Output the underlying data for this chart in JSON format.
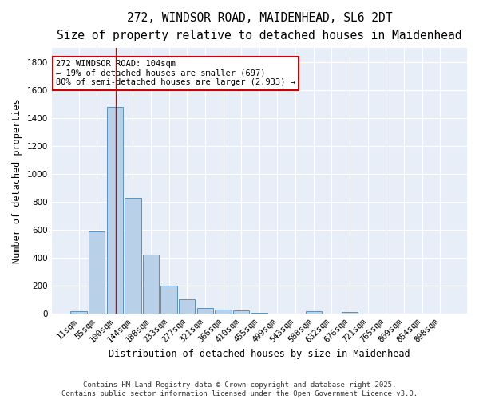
{
  "title_line1": "272, WINDSOR ROAD, MAIDENHEAD, SL6 2DT",
  "title_line2": "Size of property relative to detached houses in Maidenhead",
  "xlabel": "Distribution of detached houses by size in Maidenhead",
  "ylabel": "Number of detached properties",
  "bar_labels": [
    "11sqm",
    "55sqm",
    "100sqm",
    "144sqm",
    "188sqm",
    "233sqm",
    "277sqm",
    "321sqm",
    "366sqm",
    "410sqm",
    "455sqm",
    "499sqm",
    "543sqm",
    "588sqm",
    "632sqm",
    "676sqm",
    "721sqm",
    "765sqm",
    "809sqm",
    "854sqm",
    "898sqm"
  ],
  "bar_values": [
    15,
    590,
    1480,
    830,
    420,
    200,
    100,
    38,
    30,
    20,
    5,
    0,
    0,
    15,
    0,
    12,
    0,
    0,
    0,
    0,
    0
  ],
  "bar_color": "#b8d0e8",
  "bar_edge_color": "#6090b8",
  "background_color": "#e8eef8",
  "grid_color": "#ffffff",
  "red_line_x": 2.05,
  "annotation_text": "272 WINDSOR ROAD: 104sqm\n← 19% of detached houses are smaller (697)\n80% of semi-detached houses are larger (2,933) →",
  "annotation_box_color": "#ffffff",
  "annotation_box_edge": "#cc0000",
  "ylim": [
    0,
    1900
  ],
  "yticks": [
    0,
    200,
    400,
    600,
    800,
    1000,
    1200,
    1400,
    1600,
    1800
  ],
  "footnote": "Contains HM Land Registry data © Crown copyright and database right 2025.\nContains public sector information licensed under the Open Government Licence v3.0.",
  "title_fontsize": 10.5,
  "subtitle_fontsize": 9.5,
  "axis_label_fontsize": 8.5,
  "tick_fontsize": 7.5,
  "annotation_fontsize": 7.5,
  "footnote_fontsize": 6.5
}
